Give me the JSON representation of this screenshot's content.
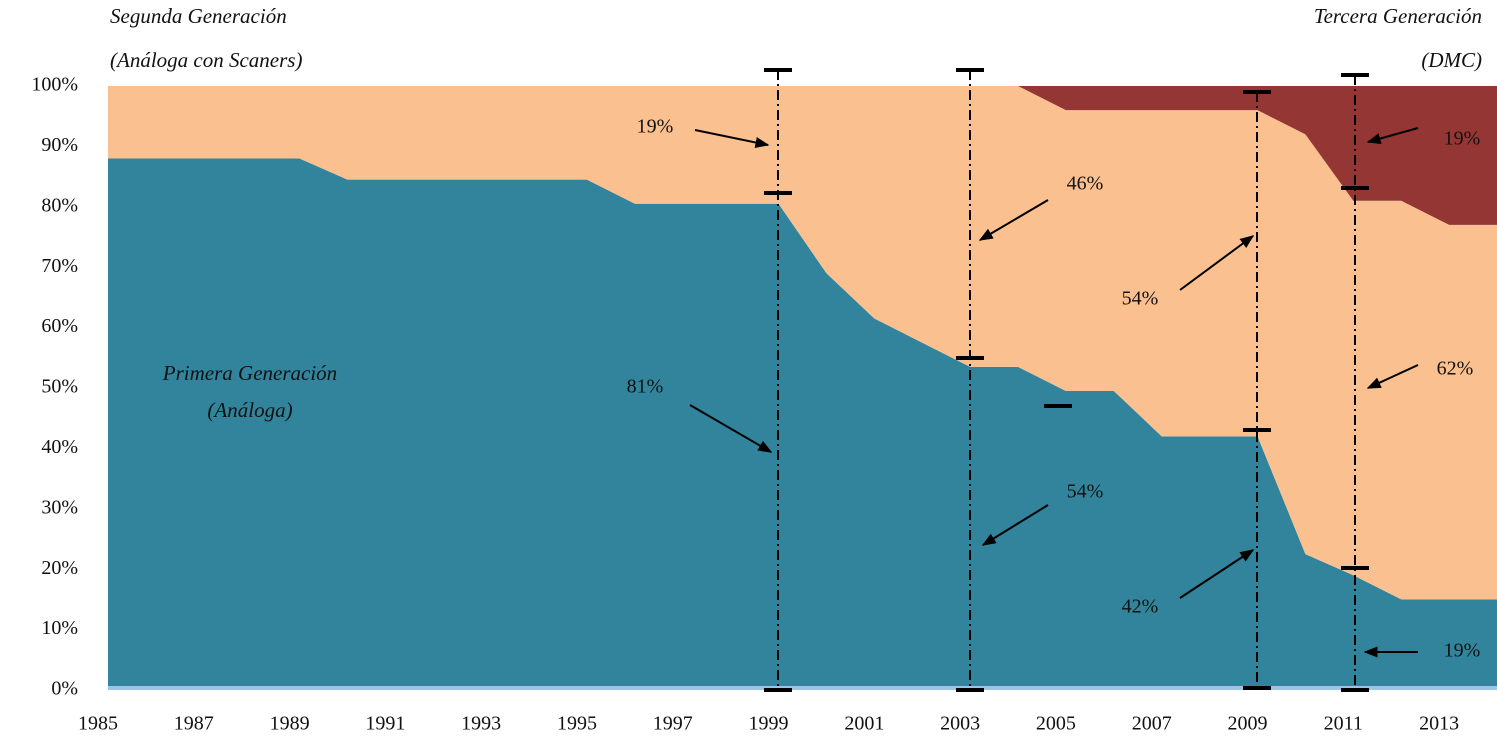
{
  "chart_data": {
    "type": "stacked_area",
    "x": [
      1985,
      1986,
      1987,
      1988,
      1989,
      1990,
      1991,
      1992,
      1993,
      1994,
      1995,
      1996,
      1997,
      1998,
      1999,
      2000,
      2001,
      2002,
      2003,
      2004,
      2005,
      2006,
      2007,
      2008,
      2009,
      2010,
      2011,
      2012,
      2013,
      2014
    ],
    "xlim": [
      1985,
      2014
    ],
    "xticks": [
      1985,
      1987,
      1989,
      1991,
      1993,
      1995,
      1997,
      1999,
      2001,
      2003,
      2005,
      2007,
      2009,
      2011,
      2013
    ],
    "ylim": [
      0,
      100
    ],
    "yticks": [
      {
        "value": 0,
        "label": "0%"
      },
      {
        "value": 10,
        "label": "10%"
      },
      {
        "value": 20,
        "label": "20%"
      },
      {
        "value": 30,
        "label": "30%"
      },
      {
        "value": 40,
        "label": "40%"
      },
      {
        "value": 50,
        "label": "50%"
      },
      {
        "value": 60,
        "label": "60%"
      },
      {
        "value": 70,
        "label": "70%"
      },
      {
        "value": 80,
        "label": "80%"
      },
      {
        "value": 90,
        "label": "90%"
      },
      {
        "value": 100,
        "label": "100%"
      }
    ],
    "series": [
      {
        "name": "Primera Generación",
        "sublabel": "(Análoga)",
        "color": "#31849b",
        "values": [
          88,
          88,
          88,
          88,
          88,
          84.5,
          84.5,
          84.5,
          84.5,
          84.5,
          84.5,
          80.5,
          80.5,
          80.5,
          80.5,
          69,
          61.5,
          57.5,
          53.5,
          53.5,
          49.5,
          49.5,
          42,
          42,
          42,
          22.5,
          19,
          15,
          15,
          15
        ]
      },
      {
        "name": "Segunda Generación",
        "sublabel": "(Análoga con Scaners)",
        "color": "#fac08f",
        "values": [
          12,
          12,
          12,
          12,
          12,
          15.5,
          15.5,
          15.5,
          15.5,
          15.5,
          15.5,
          19.5,
          19.5,
          19.5,
          19.5,
          31,
          38.5,
          42.5,
          46.5,
          46.5,
          46.5,
          46.5,
          54,
          54,
          54,
          69.5,
          62,
          66,
          62,
          62
        ]
      },
      {
        "name": "Tercera Generación",
        "sublabel": "(DMC)",
        "color": "#943634",
        "values": [
          0,
          0,
          0,
          0,
          0,
          0,
          0,
          0,
          0,
          0,
          0,
          0,
          0,
          0,
          0,
          0,
          0,
          0,
          0,
          0,
          4,
          4,
          4,
          4,
          4,
          8,
          19,
          19,
          23,
          23
        ]
      }
    ],
    "annotations": [
      "19%",
      "81%",
      "46%",
      "54%",
      "54%",
      "42%",
      "19%",
      "62%",
      "19%"
    ]
  }
}
